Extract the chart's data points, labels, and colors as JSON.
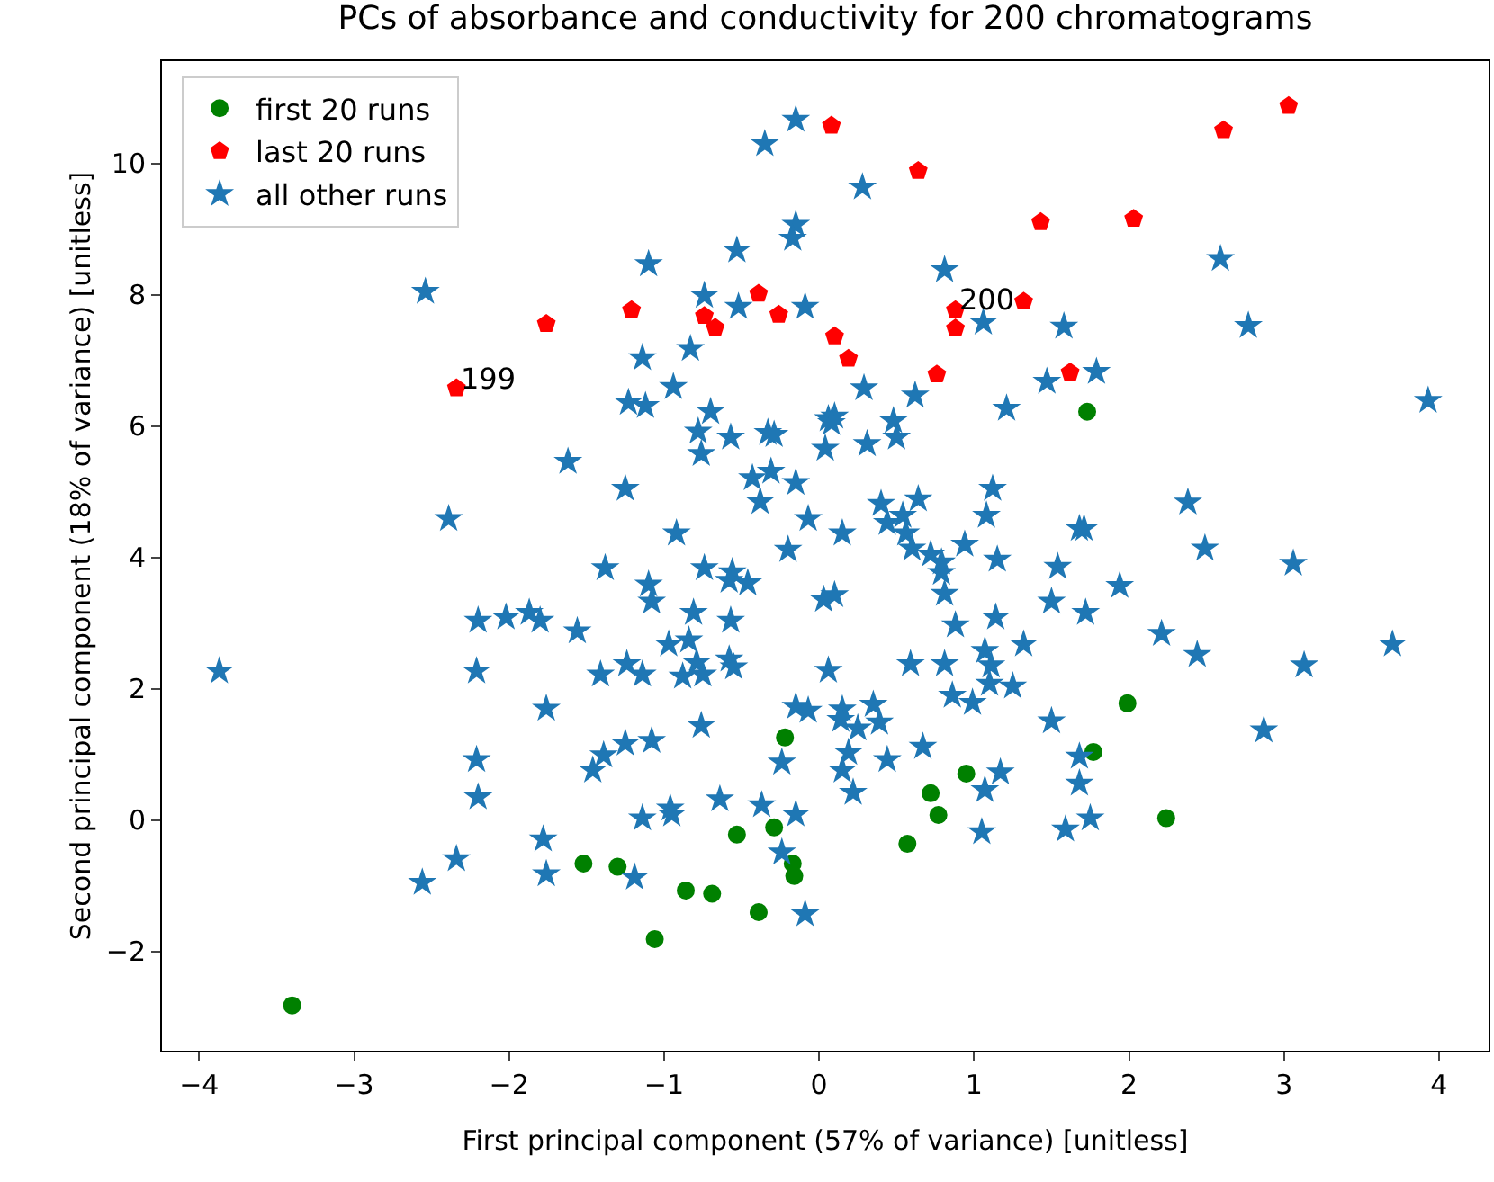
{
  "chart_data": {
    "type": "scatter",
    "title": "PCs of absorbance and conductivity for 200 chromatograms",
    "xlabel": "First principal component (57% of variance) [unitless]",
    "ylabel": "Second principal component (18% of variance) [unitless]",
    "xlim": [
      -4.24,
      4.32
    ],
    "ylim": [
      -3.51,
      11.56
    ],
    "xticks": [
      -4,
      -3,
      -2,
      -1,
      0,
      1,
      2,
      3,
      4
    ],
    "yticks": [
      -2,
      0,
      2,
      4,
      6,
      8,
      10
    ],
    "grid": false,
    "legend": "top left",
    "annotations": [
      {
        "text": "199",
        "x": -2.34,
        "y": 6.58
      },
      {
        "text": "200",
        "x": 0.88,
        "y": 7.77
      }
    ],
    "series": [
      {
        "name": "first 20 runs",
        "color": "#008000",
        "marker": "circle",
        "x": [
          -3.4,
          -1.52,
          -1.3,
          -1.06,
          -0.86,
          -0.69,
          -0.53,
          -0.39,
          -0.29,
          -0.22,
          -0.17,
          -0.16,
          0.57,
          0.72,
          0.77,
          0.95,
          1.77,
          1.99,
          2.24,
          1.73
        ],
        "values": [
          -2.82,
          -0.66,
          -0.71,
          -1.81,
          -1.07,
          -1.12,
          -0.22,
          -1.4,
          -0.11,
          1.26,
          -0.66,
          -0.85,
          -0.36,
          0.41,
          0.08,
          0.71,
          1.04,
          1.78,
          0.03,
          6.22
        ]
      },
      {
        "name": "last 20 runs",
        "color": "#ff0000",
        "x": [
          -2.34,
          -1.76,
          -1.21,
          -0.74,
          -0.67,
          -0.39,
          -0.26,
          0.08,
          0.64,
          1.43,
          2.03,
          2.61,
          3.03,
          0.1,
          0.19,
          0.76,
          0.88,
          0.88,
          1.32,
          1.62
        ],
        "values": [
          6.58,
          7.56,
          7.77,
          7.68,
          7.5,
          8.02,
          7.7,
          10.58,
          9.89,
          9.11,
          9.16,
          10.51,
          10.88,
          7.37,
          7.03,
          6.79,
          7.49,
          7.77,
          7.9,
          6.82
        ]
      },
      {
        "name": "all other runs",
        "color": "#1f77b4",
        "marker": "star",
        "x": [
          -0.15,
          -0.35,
          -2.54,
          -1.1,
          -0.53,
          -0.15,
          -0.17,
          -0.74,
          -0.52,
          -0.09,
          -1.14,
          -0.83,
          -0.94,
          -1.23,
          -1.12,
          -0.7,
          -0.78,
          -0.57,
          -0.76,
          -0.33,
          -0.29,
          -1.62,
          -1.25,
          -0.43,
          -0.31,
          -0.15,
          -0.38,
          -0.07,
          -2.39,
          -0.92,
          -0.2,
          -1.38,
          -0.74,
          -0.56,
          0.06,
          0.28,
          0.81,
          1.06,
          1.58,
          2.59,
          2.77,
          0.29,
          0.62,
          1.47,
          1.79,
          1.21,
          0.1,
          0.08,
          0.48,
          0.5,
          0.04,
          0.31,
          3.93,
          0.15,
          0.4,
          0.44,
          0.54,
          0.64,
          0.56,
          0.6,
          0.72,
          0.79,
          0.94,
          1.12,
          1.08,
          1.15,
          1.54,
          1.68,
          1.71,
          2.38,
          2.49,
          3.06,
          -3.87,
          -2.2,
          -2.02,
          -1.87,
          -1.8,
          -1.56,
          -1.1,
          -1.08,
          -0.58,
          -0.46,
          -0.81,
          -0.57,
          -0.97,
          -0.84,
          -2.21,
          -1.41,
          -1.24,
          -1.14,
          -0.88,
          -0.79,
          -0.75,
          -0.58,
          -0.55,
          0.06,
          -1.76,
          -0.15,
          -0.07,
          -0.76,
          -2.21,
          -2.2,
          -1.08,
          -1.25,
          -1.39,
          -1.46,
          -0.24,
          -1.14,
          -0.96,
          -0.95,
          -0.64,
          -0.37,
          -0.15,
          -1.78,
          -1.76,
          -2.34,
          -2.56,
          -1.19,
          -0.24,
          -0.09,
          0.03,
          0.79,
          0.81,
          0.1,
          1.5,
          1.94,
          1.72,
          1.14,
          0.88,
          2.21,
          2.44,
          3.7,
          3.13,
          1.32,
          1.07,
          1.11,
          0.59,
          0.81,
          1.1,
          1.25,
          0.86,
          0.99,
          0.15,
          0.14,
          0.25,
          0.35,
          0.39,
          0.19,
          0.15,
          0.22,
          0.44,
          0.67,
          1.5,
          2.87,
          1.68,
          1.17,
          1.07,
          1.68,
          1.75,
          1.59,
          1.05
        ],
        "values": [
          10.67,
          10.3,
          8.05,
          8.47,
          8.68,
          9.07,
          8.86,
          7.99,
          7.82,
          7.82,
          7.04,
          7.18,
          6.6,
          6.36,
          6.31,
          6.22,
          5.92,
          5.83,
          5.58,
          5.9,
          5.87,
          5.46,
          5.05,
          5.21,
          5.31,
          5.14,
          4.85,
          4.59,
          4.59,
          4.37,
          4.12,
          3.84,
          3.84,
          3.78,
          6.11,
          9.64,
          8.38,
          7.58,
          7.52,
          8.55,
          7.53,
          6.58,
          6.47,
          6.68,
          6.83,
          6.27,
          6.15,
          6.05,
          6.08,
          5.83,
          5.66,
          5.73,
          6.39,
          4.37,
          4.82,
          4.53,
          4.64,
          4.89,
          4.37,
          4.14,
          4.05,
          3.93,
          4.2,
          5.05,
          4.64,
          3.97,
          3.86,
          4.44,
          4.44,
          4.84,
          4.14,
          3.91,
          2.27,
          3.04,
          3.09,
          3.16,
          3.04,
          2.88,
          3.59,
          3.33,
          3.65,
          3.61,
          3.16,
          3.04,
          2.68,
          2.74,
          2.27,
          2.22,
          2.38,
          2.22,
          2.19,
          2.4,
          2.22,
          2.45,
          2.33,
          2.28,
          1.7,
          1.73,
          1.67,
          1.44,
          0.92,
          0.35,
          1.21,
          1.17,
          0.99,
          0.76,
          0.88,
          0.03,
          0.18,
          0.09,
          0.32,
          0.23,
          0.09,
          -0.29,
          -0.82,
          -0.59,
          -0.95,
          -0.87,
          -0.49,
          -1.43,
          3.36,
          3.77,
          3.45,
          3.43,
          3.33,
          3.57,
          3.16,
          3.09,
          2.97,
          2.84,
          2.52,
          2.68,
          2.36,
          2.68,
          2.58,
          2.36,
          2.38,
          2.38,
          2.08,
          2.04,
          1.9,
          1.79,
          1.69,
          1.53,
          1.4,
          1.76,
          1.49,
          1.03,
          0.76,
          0.42,
          0.92,
          1.12,
          1.51,
          1.37,
          0.97,
          0.73,
          0.46,
          0.56,
          0.03,
          -0.14,
          -0.18
        ]
      }
    ]
  }
}
